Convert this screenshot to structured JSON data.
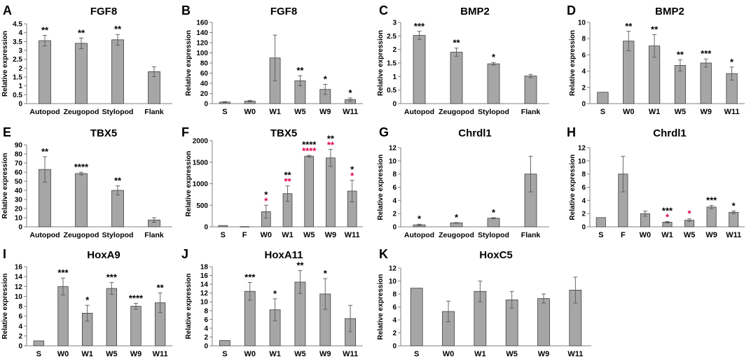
{
  "figure": {
    "ylabel": "Relative expression",
    "star_black": "#000000",
    "star_red": "#e4004b",
    "bar_fill": "#a6a6a6",
    "bar_stroke": "#404040"
  },
  "chart_data": [
    {
      "panel": "A",
      "title": "FGF8",
      "type": "bar",
      "categories": [
        "Autopod",
        "Zeugopod",
        "Stylopod",
        "Flank"
      ],
      "values": [
        3.55,
        3.4,
        3.6,
        1.8
      ],
      "errors": [
        0.3,
        0.3,
        0.3,
        0.28
      ],
      "ylim": [
        0,
        4.5
      ],
      "yticks": [
        "0",
        "0.5",
        "1",
        "1.5",
        "2",
        "2.5",
        "3",
        "3.5",
        "4",
        "4.5"
      ],
      "stars": [
        [
          "**",
          ""
        ],
        [
          "**",
          ""
        ],
        [
          "**",
          ""
        ],
        [
          "",
          ""
        ]
      ]
    },
    {
      "panel": "B",
      "title": "FGF8",
      "type": "bar",
      "categories": [
        "S",
        "W0",
        "W1",
        "W5",
        "W9",
        "W11"
      ],
      "values": [
        3,
        5,
        90,
        45,
        28,
        8
      ],
      "errors": [
        1,
        1.5,
        45,
        10,
        10,
        3
      ],
      "ylim": [
        0,
        160
      ],
      "yticks": [
        "0",
        "20",
        "40",
        "60",
        "80",
        "100",
        "120",
        "140",
        "160"
      ],
      "stars": [
        [
          "",
          ""
        ],
        [
          "",
          ""
        ],
        [
          "",
          ""
        ],
        [
          "**",
          ""
        ],
        [
          "*",
          ""
        ],
        [
          "*",
          ""
        ]
      ]
    },
    {
      "panel": "C",
      "title": "BMP2",
      "type": "bar",
      "categories": [
        "Autopod",
        "Zeugopod",
        "Stylopod",
        "Flank"
      ],
      "values": [
        2.52,
        1.9,
        1.47,
        1.02
      ],
      "errors": [
        0.15,
        0.15,
        0.05,
        0.06
      ],
      "ylim": [
        0,
        3
      ],
      "yticks": [
        "0",
        "0.5",
        "1",
        "1.5",
        "2",
        "2.5",
        "3"
      ],
      "stars": [
        [
          "***",
          ""
        ],
        [
          "**",
          ""
        ],
        [
          "*",
          ""
        ],
        [
          "",
          ""
        ]
      ]
    },
    {
      "panel": "D",
      "title": "BMP2",
      "type": "bar",
      "categories": [
        "S",
        "W0",
        "W1",
        "W5",
        "W9",
        "W11"
      ],
      "values": [
        1.4,
        7.7,
        7.1,
        4.7,
        5.0,
        3.7
      ],
      "errors": [
        0,
        1.2,
        1.4,
        0.7,
        0.5,
        0.8
      ],
      "ylim": [
        0,
        10
      ],
      "yticks": [
        "0",
        "2",
        "4",
        "6",
        "8",
        "10"
      ],
      "stars": [
        [
          "",
          ""
        ],
        [
          "**",
          ""
        ],
        [
          "**",
          ""
        ],
        [
          "**",
          ""
        ],
        [
          "***",
          ""
        ],
        [
          "*",
          ""
        ]
      ]
    },
    {
      "panel": "E",
      "title": "TBX5",
      "type": "bar",
      "categories": [
        "Autopod",
        "Zeugopod",
        "Stylopod",
        "Flank"
      ],
      "values": [
        63,
        58.5,
        40,
        7.5
      ],
      "errors": [
        14,
        1.5,
        5,
        2.5
      ],
      "ylim": [
        0,
        90
      ],
      "yticks": [
        "0",
        "10",
        "20",
        "30",
        "40",
        "50",
        "60",
        "70",
        "80",
        "90"
      ],
      "stars": [
        [
          "**",
          ""
        ],
        [
          "****",
          ""
        ],
        [
          "**",
          ""
        ],
        [
          "",
          ""
        ]
      ]
    },
    {
      "panel": "F",
      "title": "TBX5",
      "type": "bar",
      "categories": [
        "S",
        "F",
        "W0",
        "W1",
        "W5",
        "W9",
        "W11"
      ],
      "values": [
        30,
        5,
        350,
        770,
        1640,
        1600,
        830
      ],
      "errors": [
        0,
        0,
        150,
        180,
        20,
        200,
        250
      ],
      "ylim": [
        0,
        2000
      ],
      "yticks": [
        "0",
        "500",
        "1000",
        "1500",
        "2000"
      ],
      "stars": [
        [
          "",
          ""
        ],
        [
          "",
          ""
        ],
        [
          "*",
          "*"
        ],
        [
          "**",
          "**"
        ],
        [
          "****",
          "****"
        ],
        [
          "**",
          "**"
        ],
        [
          "*",
          "*"
        ]
      ]
    },
    {
      "panel": "G",
      "title": "Chrdl1",
      "type": "bar",
      "categories": [
        "Autopod",
        "Zeugopod",
        "Stylopod",
        "Flank"
      ],
      "values": [
        0.3,
        0.6,
        1.3,
        8.0
      ],
      "errors": [
        0.1,
        0.05,
        0.1,
        2.7
      ],
      "ylim": [
        0,
        12
      ],
      "yticks": [
        "0",
        "2",
        "4",
        "6",
        "8",
        "10",
        "12"
      ],
      "stars": [
        [
          "*",
          ""
        ],
        [
          "*",
          ""
        ],
        [
          "*",
          ""
        ],
        [
          "",
          ""
        ]
      ]
    },
    {
      "panel": "H",
      "title": "Chrdl1",
      "type": "bar",
      "categories": [
        "S",
        "F",
        "W0",
        "W1",
        "W5",
        "W9",
        "W11"
      ],
      "values": [
        1.4,
        8.0,
        2.0,
        0.7,
        1.0,
        3.0,
        2.2
      ],
      "errors": [
        0,
        2.7,
        0.4,
        0.1,
        0.2,
        0.25,
        0.2
      ],
      "ylim": [
        0,
        12
      ],
      "yticks": [
        "0",
        "2",
        "4",
        "6",
        "8",
        "10",
        "12"
      ],
      "stars": [
        [
          "",
          ""
        ],
        [
          "",
          ""
        ],
        [
          "",
          ""
        ],
        [
          "***",
          "*"
        ],
        [
          "",
          "*"
        ],
        [
          "***",
          ""
        ],
        [
          "*",
          ""
        ]
      ]
    },
    {
      "panel": "I",
      "title": "HoxA9",
      "type": "bar",
      "categories": [
        "S",
        "W0",
        "W1",
        "W5",
        "W9",
        "W11"
      ],
      "values": [
        1.0,
        12.0,
        6.6,
        11.6,
        8.0,
        8.7
      ],
      "errors": [
        0,
        1.7,
        1.6,
        1.2,
        0.6,
        2.0
      ],
      "ylim": [
        0,
        16
      ],
      "yticks": [
        "0",
        "2",
        "4",
        "6",
        "8",
        "10",
        "12",
        "14",
        "16"
      ],
      "stars": [
        [
          "",
          ""
        ],
        [
          "***",
          ""
        ],
        [
          "*",
          ""
        ],
        [
          "***",
          ""
        ],
        [
          "****",
          ""
        ],
        [
          "**",
          ""
        ]
      ]
    },
    {
      "panel": "J",
      "title": "HoxA11",
      "type": "bar",
      "categories": [
        "S",
        "W0",
        "W1",
        "W5",
        "W9",
        "W11"
      ],
      "values": [
        1.2,
        12.4,
        8.2,
        14.5,
        11.8,
        6.2
      ],
      "errors": [
        0,
        2.0,
        2.5,
        2.6,
        3.5,
        3.0
      ],
      "ylim": [
        0,
        18
      ],
      "yticks": [
        "0",
        "2",
        "4",
        "6",
        "8",
        "10",
        "12",
        "14",
        "16",
        "18"
      ],
      "stars": [
        [
          "",
          ""
        ],
        [
          "***",
          ""
        ],
        [
          "*",
          ""
        ],
        [
          "**",
          ""
        ],
        [
          "*",
          ""
        ],
        [
          "",
          ""
        ]
      ]
    },
    {
      "panel": "K",
      "title": "HoxC5",
      "type": "bar",
      "categories": [
        "S",
        "W0",
        "W1",
        "W5",
        "W9",
        "W11"
      ],
      "values": [
        8.9,
        5.3,
        8.4,
        7.1,
        7.3,
        8.6
      ],
      "errors": [
        0,
        1.6,
        1.6,
        1.3,
        0.7,
        2.0
      ],
      "ylim": [
        0,
        12
      ],
      "yticks": [
        "0",
        "2",
        "4",
        "6",
        "8",
        "10",
        "12"
      ],
      "stars": [
        [
          "",
          ""
        ],
        [
          "",
          ""
        ],
        [
          "",
          ""
        ],
        [
          "",
          ""
        ],
        [
          "",
          ""
        ],
        [
          "",
          ""
        ]
      ]
    }
  ]
}
